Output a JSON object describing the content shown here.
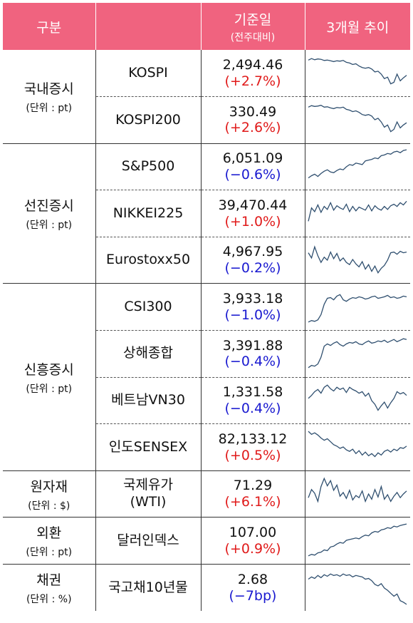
{
  "header": {
    "col_category": "구분",
    "col_date_main": "기준일",
    "col_date_sub": "(전주대비)",
    "col_trend": "3개월 추이"
  },
  "colors": {
    "header_bg": "#f0637f",
    "up": "#e01a1a",
    "down": "#1a1ad0",
    "spark": "#2f4f6f"
  },
  "groups": [
    {
      "title": "국내증시",
      "unit": "(단위 : pt)",
      "rows": [
        {
          "name": "KOSPI",
          "value": "2,494.46",
          "change": "(+2.7%)",
          "dir": "up",
          "trend": [
            86,
            90,
            87,
            89,
            88,
            85,
            86,
            84,
            82,
            84,
            83,
            85,
            80,
            78,
            74,
            76,
            70,
            66,
            64,
            66,
            62,
            54,
            56,
            48,
            36,
            40,
            22,
            26,
            48,
            30,
            38,
            45
          ]
        },
        {
          "name": "KOSPI200",
          "value": "330.49",
          "change": "(+2.6%)",
          "dir": "up",
          "trend": [
            84,
            88,
            86,
            87,
            89,
            84,
            85,
            82,
            80,
            83,
            82,
            84,
            78,
            76,
            72,
            74,
            70,
            64,
            62,
            64,
            60,
            50,
            54,
            44,
            30,
            36,
            18,
            24,
            44,
            28,
            36,
            42
          ]
        }
      ]
    },
    {
      "title": "선진증시",
      "unit": "(단위 : pt)",
      "rows": [
        {
          "name": "S&P500",
          "value": "6,051.09",
          "change": "(−0.6%)",
          "dir": "down",
          "trend": [
            20,
            26,
            30,
            24,
            32,
            38,
            42,
            36,
            34,
            40,
            44,
            42,
            50,
            56,
            54,
            60,
            58,
            56,
            66,
            68,
            70,
            74,
            72,
            80,
            82,
            86,
            84,
            90,
            92,
            88,
            94,
            96
          ]
        },
        {
          "name": "NIKKEI225",
          "value": "39,470.44",
          "change": "(+1.0%)",
          "dir": "up",
          "trend": [
            30,
            66,
            56,
            74,
            54,
            70,
            62,
            80,
            60,
            72,
            66,
            62,
            76,
            56,
            70,
            58,
            68,
            64,
            60,
            74,
            58,
            72,
            64,
            60,
            70,
            62,
            72,
            76,
            70,
            80,
            74,
            84
          ]
        },
        {
          "name": "Eurostoxx50",
          "value": "4,967.95",
          "change": "(−0.2%)",
          "dir": "down",
          "trend": [
            70,
            56,
            86,
            62,
            44,
            58,
            50,
            72,
            54,
            68,
            48,
            56,
            44,
            38,
            52,
            40,
            32,
            46,
            26,
            38,
            20,
            34,
            16,
            28,
            36,
            50,
            70,
            72,
            66,
            74,
            70,
            72
          ]
        }
      ]
    },
    {
      "title": "신흥증시",
      "unit": "(단위 : pt)",
      "rows": [
        {
          "name": "CSI300",
          "value": "3,933.18",
          "change": "(−1.0%)",
          "dir": "down",
          "trend": [
            10,
            14,
            12,
            16,
            30,
            58,
            74,
            76,
            70,
            80,
            84,
            70,
            66,
            72,
            76,
            74,
            78,
            76,
            72,
            74,
            78,
            80,
            74,
            76,
            78,
            82,
            76,
            78,
            74,
            76,
            80,
            78
          ]
        },
        {
          "name": "상해종합",
          "value": "3,391.88",
          "change": "(−0.4%)",
          "dir": "down",
          "trend": [
            12,
            18,
            16,
            22,
            40,
            70,
            76,
            72,
            78,
            82,
            74,
            70,
            76,
            80,
            78,
            82,
            76,
            74,
            80,
            84,
            78,
            80,
            84,
            82,
            86,
            80,
            84,
            88,
            82,
            86,
            90,
            88
          ]
        },
        {
          "name": "베트남VN30",
          "value": "1,331.58",
          "change": "(−0.4%)",
          "dir": "down",
          "trend": [
            56,
            64,
            74,
            80,
            70,
            86,
            92,
            82,
            76,
            86,
            80,
            84,
            72,
            86,
            80,
            76,
            70,
            74,
            62,
            70,
            50,
            40,
            24,
            36,
            46,
            30,
            44,
            56,
            74,
            68,
            72,
            64
          ]
        },
        {
          "name": "인도SENSEX",
          "value": "82,133.12",
          "change": "(+0.5%)",
          "dir": "up",
          "trend": [
            94,
            86,
            90,
            84,
            76,
            70,
            74,
            66,
            58,
            54,
            48,
            52,
            44,
            40,
            46,
            34,
            42,
            30,
            38,
            28,
            34,
            26,
            36,
            30,
            40,
            44,
            38,
            46,
            42,
            50,
            48,
            54
          ]
        }
      ]
    },
    {
      "title": "원자재",
      "unit": "(단위 : $)",
      "rows": [
        {
          "name": "국제유가\n(WTI)",
          "value": "71.29",
          "change": "(+6.1%)",
          "dir": "up",
          "trend": [
            40,
            62,
            52,
            30,
            70,
            92,
            72,
            86,
            60,
            74,
            44,
            54,
            38,
            60,
            34,
            46,
            40,
            58,
            30,
            50,
            36,
            62,
            42,
            70,
            36,
            48,
            30,
            44,
            54,
            40,
            50,
            58
          ]
        }
      ]
    },
    {
      "title": "외환",
      "unit": "(단위 : pt)",
      "rows": [
        {
          "name": "달러인덱스",
          "value": "107.00",
          "change": "(+0.9%)",
          "dir": "up",
          "trend": [
            10,
            14,
            12,
            18,
            20,
            26,
            24,
            34,
            36,
            42,
            46,
            44,
            52,
            54,
            56,
            58,
            56,
            62,
            66,
            64,
            72,
            76,
            74,
            80,
            82,
            86,
            84,
            90,
            88,
            92,
            94,
            96
          ]
        }
      ]
    },
    {
      "title": "채권",
      "unit": "(단위 : %)",
      "rows": [
        {
          "name": "국고채10년물",
          "value": "2.68",
          "change": "(−7bp)",
          "dir": "down",
          "trend": [
            74,
            80,
            76,
            84,
            78,
            86,
            82,
            88,
            84,
            86,
            82,
            88,
            84,
            86,
            80,
            84,
            82,
            80,
            74,
            76,
            70,
            60,
            56,
            62,
            50,
            44,
            36,
            28,
            34,
            16,
            12,
            6
          ]
        }
      ]
    }
  ]
}
